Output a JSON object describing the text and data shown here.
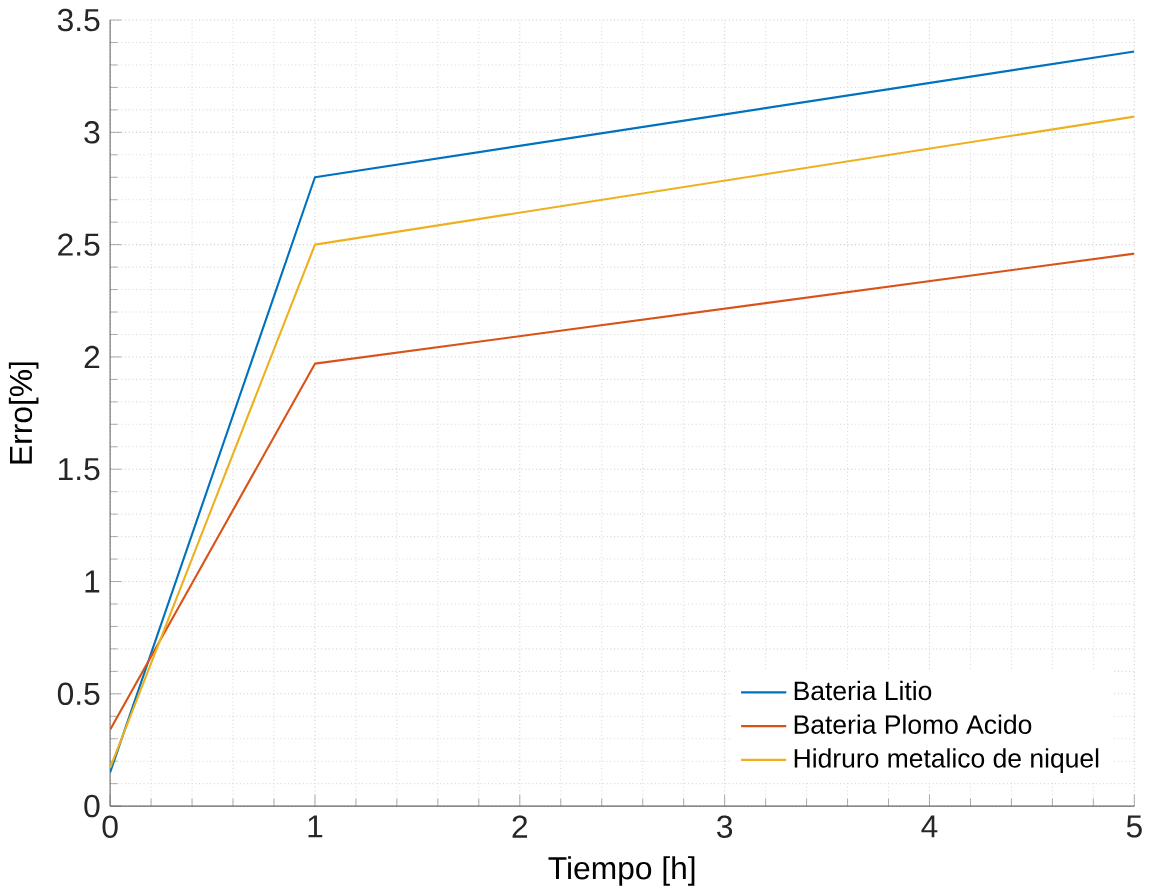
{
  "chart_data": {
    "type": "line",
    "xlabel": "Tiempo [h]",
    "ylabel": "Erro[%]",
    "x": [
      0,
      1,
      5
    ],
    "series": [
      {
        "name": "Bateria Litio",
        "color": "#0072bd",
        "values": [
          0.15,
          2.8,
          3.36
        ]
      },
      {
        "name": "Bateria Plomo Acido",
        "color": "#d95319",
        "values": [
          0.34,
          1.97,
          2.46
        ]
      },
      {
        "name": "Hidruro metalico de niquel",
        "color": "#edb120",
        "values": [
          0.17,
          2.5,
          3.07
        ]
      }
    ],
    "xlim": [
      0,
      5
    ],
    "xticks": [
      0,
      1,
      2,
      3,
      4,
      5
    ],
    "ylim": [
      0,
      3.5
    ],
    "yticks": [
      0,
      0.5,
      1,
      1.5,
      2,
      2.5,
      3,
      3.5
    ],
    "grid": true,
    "legend": "bottom right",
    "marker": "none",
    "line_style": "solid"
  }
}
